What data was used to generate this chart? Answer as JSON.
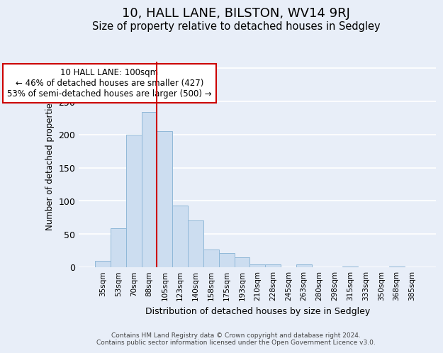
{
  "title": "10, HALL LANE, BILSTON, WV14 9RJ",
  "subtitle": "Size of property relative to detached houses in Sedgley",
  "xlabel": "Distribution of detached houses by size in Sedgley",
  "ylabel": "Number of detached properties",
  "footer_lines": [
    "Contains HM Land Registry data © Crown copyright and database right 2024.",
    "Contains public sector information licensed under the Open Government Licence v3.0."
  ],
  "bar_labels": [
    "35sqm",
    "53sqm",
    "70sqm",
    "88sqm",
    "105sqm",
    "123sqm",
    "140sqm",
    "158sqm",
    "175sqm",
    "193sqm",
    "210sqm",
    "228sqm",
    "245sqm",
    "263sqm",
    "280sqm",
    "298sqm",
    "315sqm",
    "333sqm",
    "350sqm",
    "368sqm",
    "385sqm"
  ],
  "bar_values": [
    10,
    59,
    200,
    234,
    205,
    93,
    71,
    27,
    21,
    15,
    4,
    4,
    0,
    4,
    0,
    0,
    1,
    0,
    0,
    1,
    0
  ],
  "bar_color": "#ccddf0",
  "bar_edge_color": "#90b8d8",
  "ylim": [
    0,
    310
  ],
  "yticks": [
    0,
    50,
    100,
    150,
    200,
    250,
    300
  ],
  "vline_x_idx": 3,
  "vline_color": "#cc0000",
  "annotation_title": "10 HALL LANE: 100sqm",
  "annotation_line1": "← 46% of detached houses are smaller (427)",
  "annotation_line2": "53% of semi-detached houses are larger (500) →",
  "annotation_box_color": "#cc0000",
  "background_color": "#e8eef8",
  "plot_bg_color": "#e8eef8",
  "grid_color": "#ffffff",
  "title_fontsize": 13,
  "subtitle_fontsize": 10.5
}
